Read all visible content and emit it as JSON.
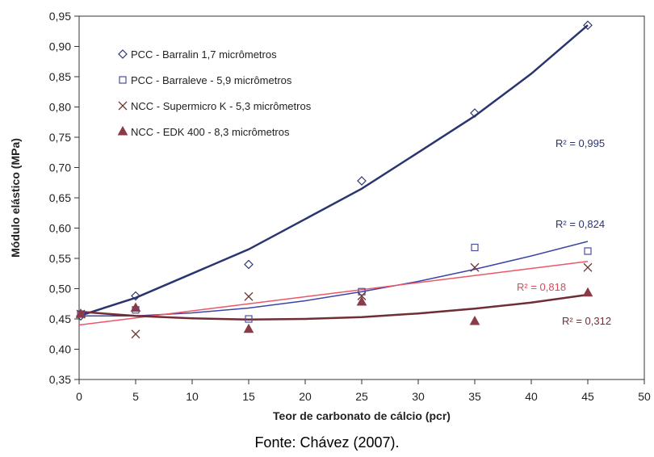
{
  "chart_data": {
    "type": "scatter",
    "xlabel": "Teor de carbonato de cálcio (pcr)",
    "ylabel": "Módulo elástico (MPa)",
    "xlim": [
      0,
      50
    ],
    "ylim": [
      0.35,
      0.95
    ],
    "x_ticks": [
      "0",
      "5",
      "10",
      "15",
      "20",
      "25",
      "30",
      "35",
      "40",
      "45",
      "50"
    ],
    "y_ticks": [
      "0,35",
      "0,40",
      "0,45",
      "0,50",
      "0,55",
      "0,60",
      "0,65",
      "0,70",
      "0,75",
      "0,80",
      "0,85",
      "0,90",
      "0,95"
    ],
    "x_tick_values": [
      0,
      5,
      10,
      15,
      20,
      25,
      30,
      35,
      40,
      45,
      50
    ],
    "y_tick_values": [
      0.35,
      0.4,
      0.45,
      0.5,
      0.55,
      0.6,
      0.65,
      0.7,
      0.75,
      0.8,
      0.85,
      0.9,
      0.95
    ],
    "grid": false,
    "legend_position": "top-left",
    "series": [
      {
        "name": "PCC - Barralin 1,7 micrômetros",
        "marker": "diamond",
        "color": "#2a3570",
        "x": [
          0,
          5,
          15,
          25,
          35,
          45
        ],
        "y": [
          0.455,
          0.488,
          0.54,
          0.678,
          0.79,
          0.935
        ],
        "r2_label": "R² = 0,995",
        "fit": {
          "x": [
            0,
            5,
            10,
            15,
            20,
            25,
            30,
            35,
            40,
            45
          ],
          "y": [
            0.455,
            0.485,
            0.525,
            0.565,
            0.615,
            0.665,
            0.725,
            0.785,
            0.855,
            0.935
          ]
        }
      },
      {
        "name": "PCC - Barraleve - 5,9 micrômetros",
        "marker": "square",
        "color": "#4a4fa0",
        "x": [
          0,
          5,
          15,
          25,
          35,
          45
        ],
        "y": [
          0.458,
          0.465,
          0.45,
          0.495,
          0.568,
          0.562
        ],
        "r2_label": "R² = 0,824",
        "fit": {
          "x": [
            0,
            5,
            10,
            15,
            20,
            25,
            30,
            35,
            40,
            45
          ],
          "y": [
            0.455,
            0.455,
            0.46,
            0.468,
            0.48,
            0.495,
            0.512,
            0.532,
            0.554,
            0.578
          ]
        }
      },
      {
        "name": "NCC - Supermicro K - 5,3 micrômetros",
        "marker": "cross",
        "color": "#6e3a3a",
        "x": [
          0,
          5,
          15,
          25,
          35,
          45
        ],
        "y": [
          0.458,
          0.425,
          0.487,
          0.488,
          0.535,
          0.535
        ],
        "r2_label": "R² = 0,818",
        "fit": {
          "x": [
            0,
            45
          ],
          "y": [
            0.44,
            0.545
          ]
        }
      },
      {
        "name": "NCC - EDK 400 - 8,3 micrômetros",
        "marker": "triangle",
        "color": "#8b3a48",
        "x": [
          0,
          5,
          15,
          25,
          35,
          45
        ],
        "y": [
          0.458,
          0.468,
          0.433,
          0.478,
          0.446,
          0.493
        ],
        "r2_label": "R² = 0,312",
        "fit": {
          "x": [
            0,
            5,
            10,
            15,
            20,
            25,
            30,
            35,
            40,
            45
          ],
          "y": [
            0.462,
            0.455,
            0.451,
            0.449,
            0.45,
            0.453,
            0.459,
            0.467,
            0.477,
            0.49
          ]
        }
      }
    ]
  },
  "colors": {
    "fit_pcc_barralin": "#2a3570",
    "fit_pcc_barraleve": "#3d44a8",
    "fit_ncc_supermicro": "#ee5566",
    "fit_ncc_edk": "#6e2e34",
    "r2_barralin": "#2a3570",
    "r2_barraleve": "#2a3570",
    "r2_supermicro": "#d94a5a",
    "r2_edk": "#6e2e34"
  },
  "source": "Fonte: Chávez (2007)."
}
